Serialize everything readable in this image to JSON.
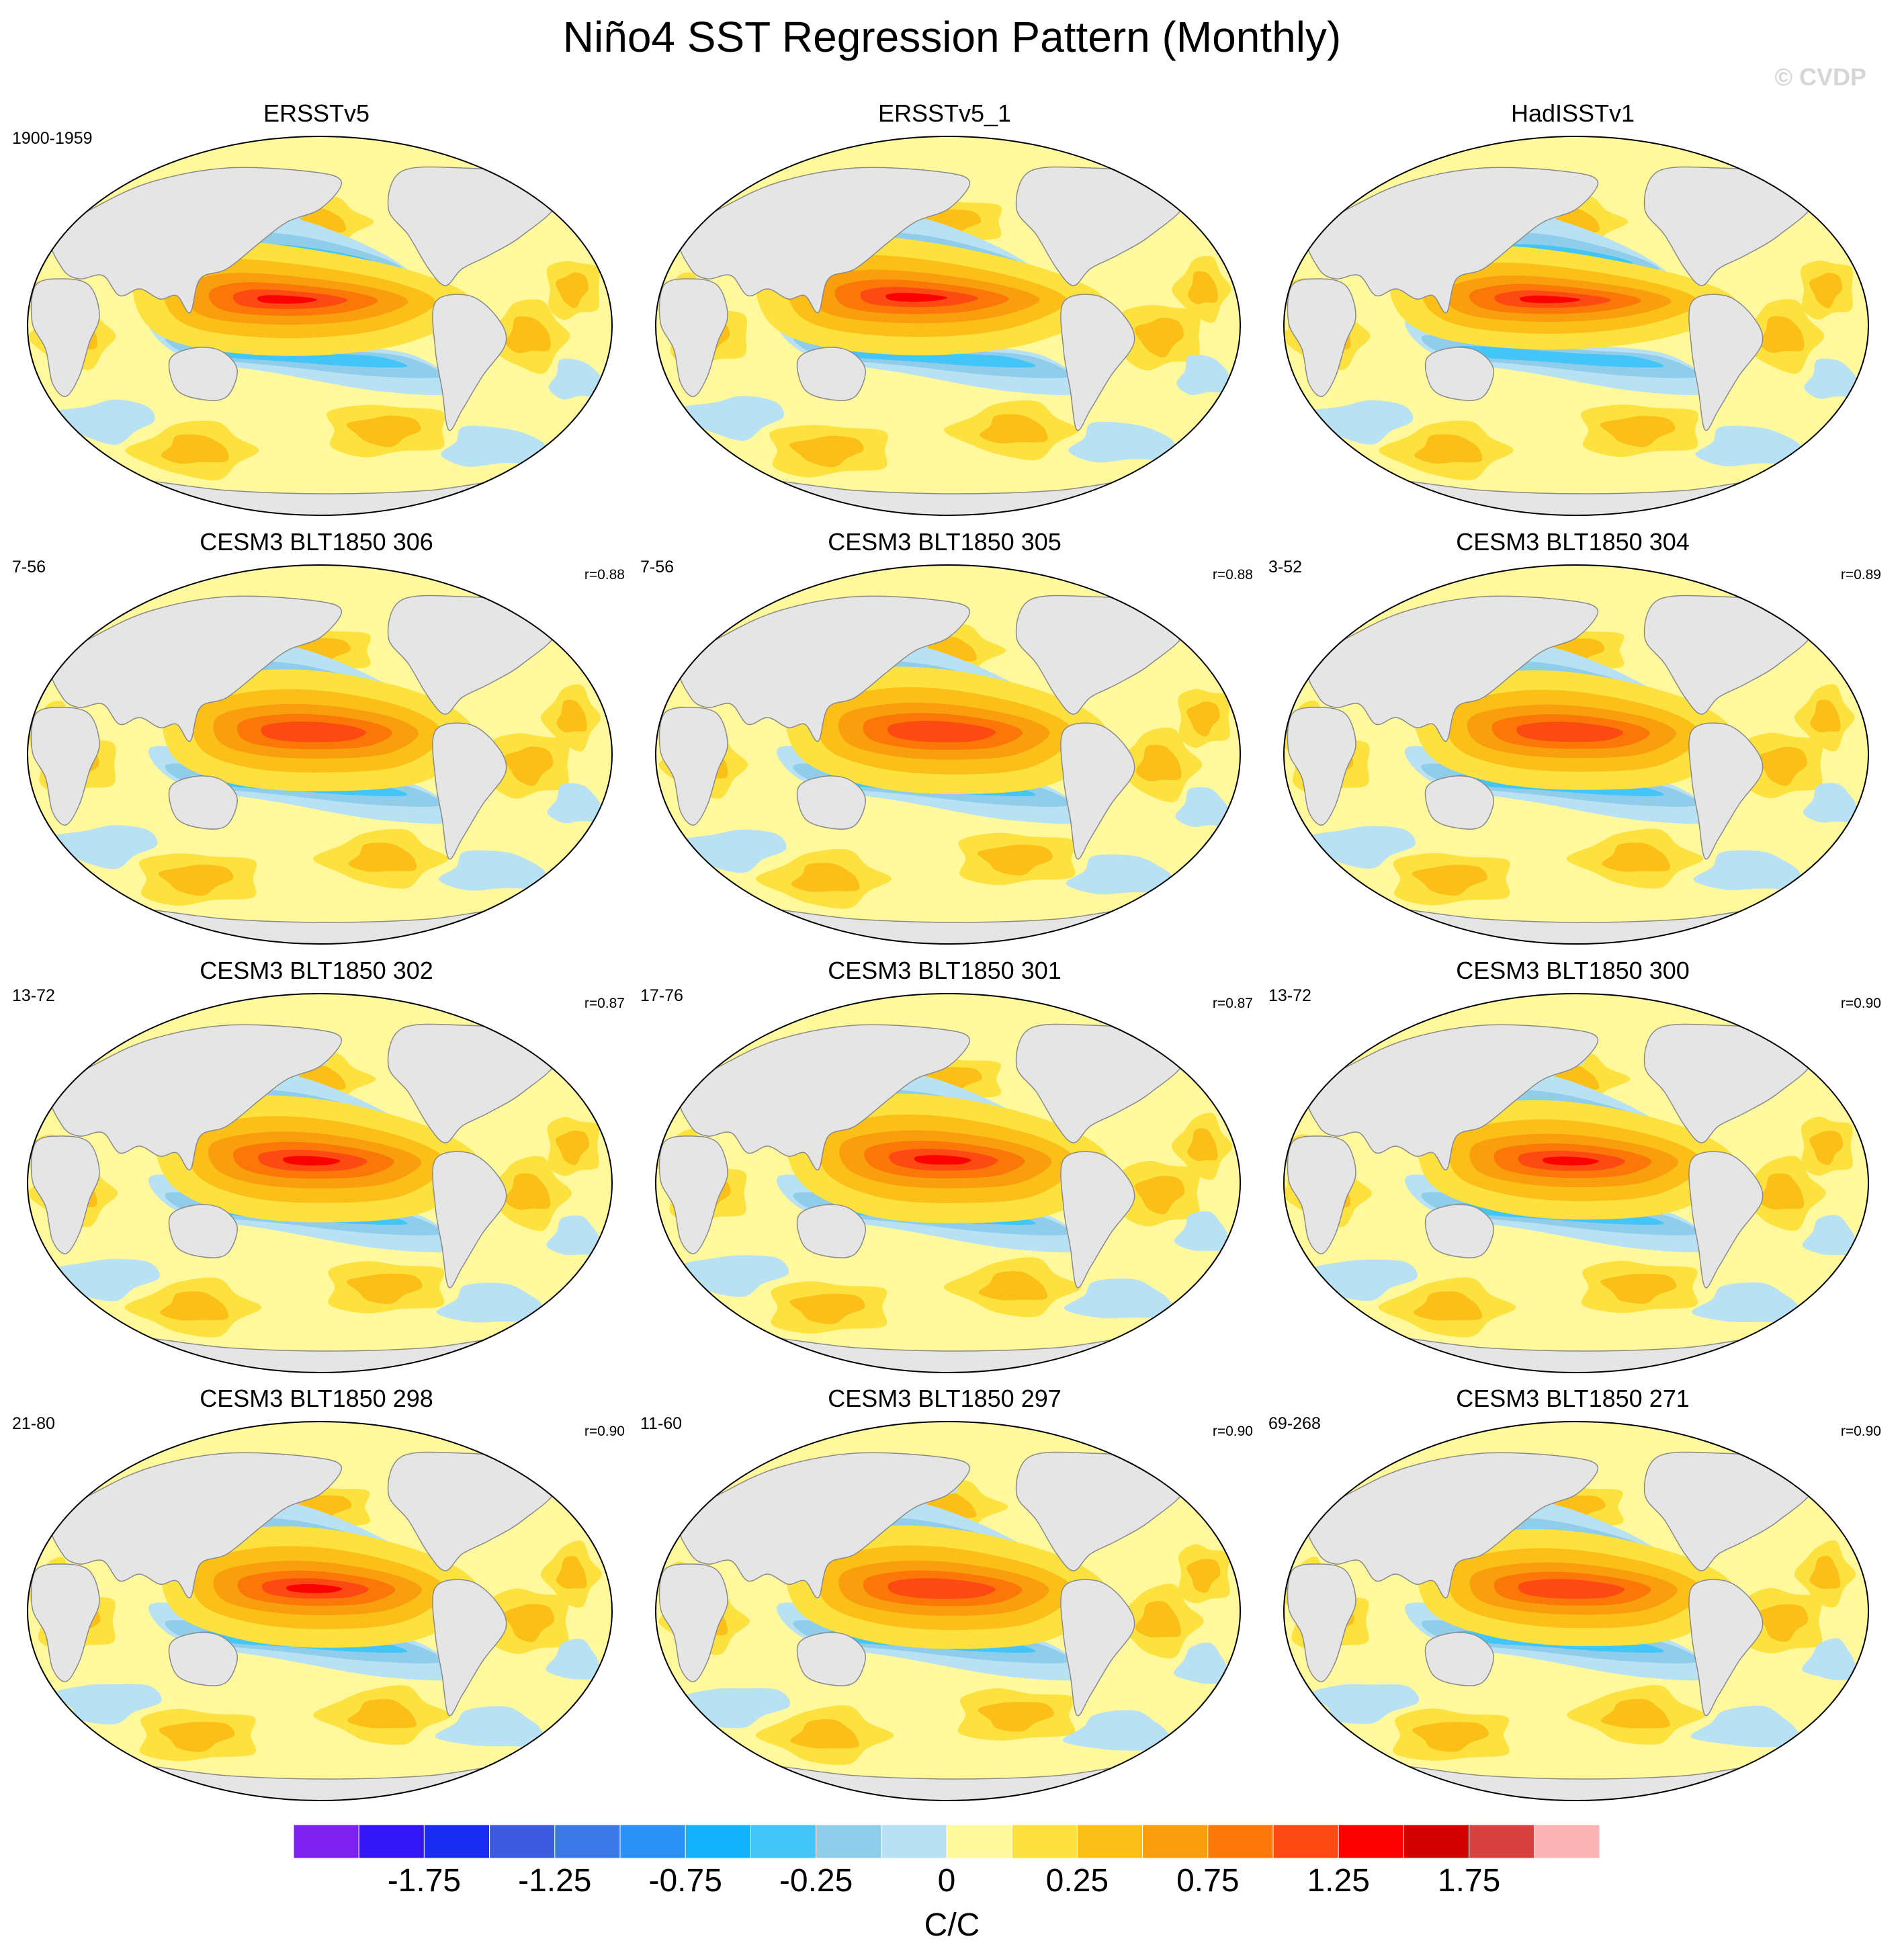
{
  "title": "Niño4 SST Regression Pattern (Monthly)",
  "copyright": "© CVDP",
  "panels": [
    {
      "title": "ERSSTv5",
      "years": "1900-1959",
      "corr": "",
      "variant": 0
    },
    {
      "title": "ERSSTv5_1",
      "years": "",
      "corr": "",
      "variant": 1
    },
    {
      "title": "HadISSTv1",
      "years": "",
      "corr": "",
      "variant": 2
    },
    {
      "title": "CESM3 BLT1850 306",
      "years": "7-56",
      "corr": "r=0.88",
      "variant": 3
    },
    {
      "title": "CESM3 BLT1850 305",
      "years": "7-56",
      "corr": "r=0.88",
      "variant": 4
    },
    {
      "title": "CESM3 BLT1850 304",
      "years": "3-52",
      "corr": "r=0.89",
      "variant": 5
    },
    {
      "title": "CESM3 BLT1850 302",
      "years": "13-72",
      "corr": "r=0.87",
      "variant": 6
    },
    {
      "title": "CESM3 BLT1850 301",
      "years": "17-76",
      "corr": "r=0.87",
      "variant": 7
    },
    {
      "title": "CESM3 BLT1850 300",
      "years": "13-72",
      "corr": "r=0.90",
      "variant": 8
    },
    {
      "title": "CESM3 BLT1850 298",
      "years": "21-80",
      "corr": "r=0.90",
      "variant": 9
    },
    {
      "title": "CESM3 BLT1850 297",
      "years": "11-60",
      "corr": "r=0.90",
      "variant": 10
    },
    {
      "title": "CESM3 BLT1850 271",
      "years": "69-268",
      "corr": "r=0.90",
      "variant": 11
    }
  ],
  "colorbar": {
    "colors": [
      "#7c21f0",
      "#3415f5",
      "#1a2cf0",
      "#3d5be0",
      "#3b78e8",
      "#2a92f5",
      "#12b3fb",
      "#43c5f7",
      "#8fcdea",
      "#b9e1f4",
      "#fff89c",
      "#fde13e",
      "#fbbf17",
      "#f99e0c",
      "#fb7808",
      "#fc4a12",
      "#fc0000",
      "#d40000",
      "#d94040",
      "#fcb4b4"
    ],
    "labels": [
      "-1.75",
      "-1.25",
      "-0.75",
      "-0.25",
      "0",
      "0.25",
      "0.75",
      "1.25",
      "1.75"
    ],
    "units": "C/C"
  },
  "map_colors": {
    "land": "#e5e5e5",
    "coast": "#8a8a8a",
    "outline": "#000000"
  }
}
